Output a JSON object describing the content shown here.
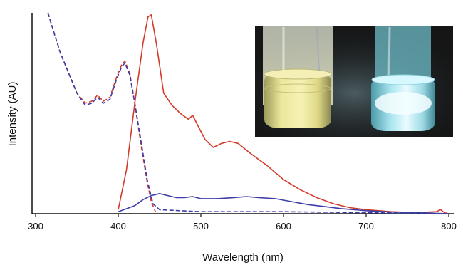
{
  "chart_data": {
    "type": "line",
    "title": "",
    "xlabel": "Wavelength (nm)",
    "ylabel": "Intensity (AU)",
    "xlim": [
      300,
      800
    ],
    "ylim": [
      0,
      1
    ],
    "x_ticks": [
      300,
      400,
      500,
      600,
      700,
      800
    ],
    "x_tick_labels": [
      "300",
      "400",
      "500",
      "600",
      "700",
      "800"
    ],
    "y_ticks_shown": false,
    "grid": false,
    "legend": "none",
    "inset": "photo of two vials (yellow and blue) in the top-right",
    "series": [
      {
        "style": "dashed",
        "color": "#d23a2a",
        "points": [
          [
            315,
            1.0
          ],
          [
            320,
            0.93
          ],
          [
            330,
            0.8
          ],
          [
            340,
            0.7
          ],
          [
            350,
            0.6
          ],
          [
            360,
            0.55
          ],
          [
            368,
            0.56
          ],
          [
            375,
            0.59
          ],
          [
            382,
            0.56
          ],
          [
            390,
            0.58
          ],
          [
            398,
            0.68
          ],
          [
            404,
            0.74
          ],
          [
            408,
            0.76
          ],
          [
            414,
            0.7
          ],
          [
            420,
            0.55
          ],
          [
            428,
            0.33
          ],
          [
            435,
            0.16
          ],
          [
            440,
            0.06
          ],
          [
            445,
            0.01
          ]
        ]
      },
      {
        "style": "dashed",
        "color": "#3c3ea8",
        "points": [
          [
            315,
            1.0
          ],
          [
            320,
            0.93
          ],
          [
            330,
            0.8
          ],
          [
            340,
            0.7
          ],
          [
            350,
            0.6
          ],
          [
            360,
            0.54
          ],
          [
            368,
            0.55
          ],
          [
            375,
            0.58
          ],
          [
            382,
            0.55
          ],
          [
            390,
            0.57
          ],
          [
            398,
            0.67
          ],
          [
            404,
            0.73
          ],
          [
            408,
            0.75
          ],
          [
            414,
            0.69
          ],
          [
            420,
            0.55
          ],
          [
            428,
            0.35
          ],
          [
            435,
            0.17
          ],
          [
            442,
            0.05
          ],
          [
            450,
            0.02
          ],
          [
            500,
            0.01
          ],
          [
            600,
            0.01
          ],
          [
            700,
            0.005
          ],
          [
            800,
            0.0
          ]
        ]
      },
      {
        "style": "solid",
        "color": "#d23a2a",
        "points": [
          [
            400,
            0.02
          ],
          [
            410,
            0.22
          ],
          [
            420,
            0.55
          ],
          [
            430,
            0.85
          ],
          [
            436,
            0.98
          ],
          [
            440,
            0.99
          ],
          [
            446,
            0.85
          ],
          [
            455,
            0.6
          ],
          [
            465,
            0.54
          ],
          [
            475,
            0.5
          ],
          [
            485,
            0.47
          ],
          [
            490,
            0.49
          ],
          [
            495,
            0.45
          ],
          [
            505,
            0.37
          ],
          [
            515,
            0.33
          ],
          [
            525,
            0.35
          ],
          [
            535,
            0.36
          ],
          [
            545,
            0.35
          ],
          [
            560,
            0.3
          ],
          [
            580,
            0.24
          ],
          [
            600,
            0.17
          ],
          [
            620,
            0.12
          ],
          [
            640,
            0.08
          ],
          [
            660,
            0.05
          ],
          [
            680,
            0.03
          ],
          [
            700,
            0.02
          ],
          [
            730,
            0.01
          ],
          [
            760,
            0.005
          ],
          [
            785,
            0.01
          ],
          [
            790,
            0.02
          ],
          [
            795,
            0.005
          ],
          [
            800,
            0.0
          ]
        ]
      },
      {
        "style": "solid",
        "color": "#3c3ea8",
        "points": [
          [
            400,
            0.01
          ],
          [
            420,
            0.04
          ],
          [
            430,
            0.07
          ],
          [
            440,
            0.09
          ],
          [
            450,
            0.1
          ],
          [
            460,
            0.09
          ],
          [
            470,
            0.08
          ],
          [
            480,
            0.08
          ],
          [
            490,
            0.085
          ],
          [
            500,
            0.075
          ],
          [
            520,
            0.075
          ],
          [
            540,
            0.08
          ],
          [
            555,
            0.085
          ],
          [
            570,
            0.08
          ],
          [
            590,
            0.075
          ],
          [
            610,
            0.06
          ],
          [
            630,
            0.045
          ],
          [
            650,
            0.035
          ],
          [
            670,
            0.025
          ],
          [
            700,
            0.015
          ],
          [
            730,
            0.008
          ],
          [
            760,
            0.005
          ],
          [
            800,
            0.0
          ]
        ]
      }
    ]
  }
}
